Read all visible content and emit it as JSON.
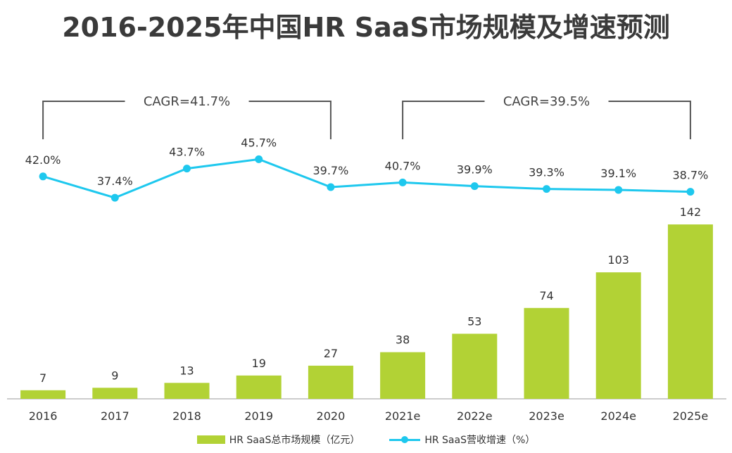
{
  "title": "2016-2025年中国HR SaaS市场规模及增速预测",
  "colors": {
    "bar": "#b2d235",
    "line": "#1ec8ee",
    "bracket": "#555555",
    "axis": "#999999"
  },
  "chart_data": {
    "type": "bar+line",
    "categories": [
      "2016",
      "2017",
      "2018",
      "2019",
      "2020",
      "2021e",
      "2022e",
      "2023e",
      "2024e",
      "2025e"
    ],
    "series": [
      {
        "name": "HR SaaS总市场规模（亿元）",
        "type": "bar",
        "values": [
          7,
          9,
          13,
          19,
          27,
          38,
          53,
          74,
          103,
          142
        ]
      },
      {
        "name": "HR SaaS营收增速（%）",
        "type": "line",
        "values": [
          42.0,
          37.4,
          43.7,
          45.7,
          39.7,
          40.7,
          39.9,
          39.3,
          39.1,
          38.7
        ],
        "labels": [
          "42.0%",
          "37.4%",
          "43.7%",
          "45.7%",
          "39.7%",
          "40.7%",
          "39.9%",
          "39.3%",
          "39.1%",
          "38.7%"
        ]
      }
    ],
    "annotations": [
      {
        "text": "CAGR=41.7%",
        "from": "2016",
        "to": "2020"
      },
      {
        "text": "CAGR=39.5%",
        "from": "2021e",
        "to": "2025e"
      }
    ]
  },
  "legend": {
    "bar_label": "HR SaaS总市场规模（亿元）",
    "line_label": "HR SaaS营收增速（%）"
  }
}
